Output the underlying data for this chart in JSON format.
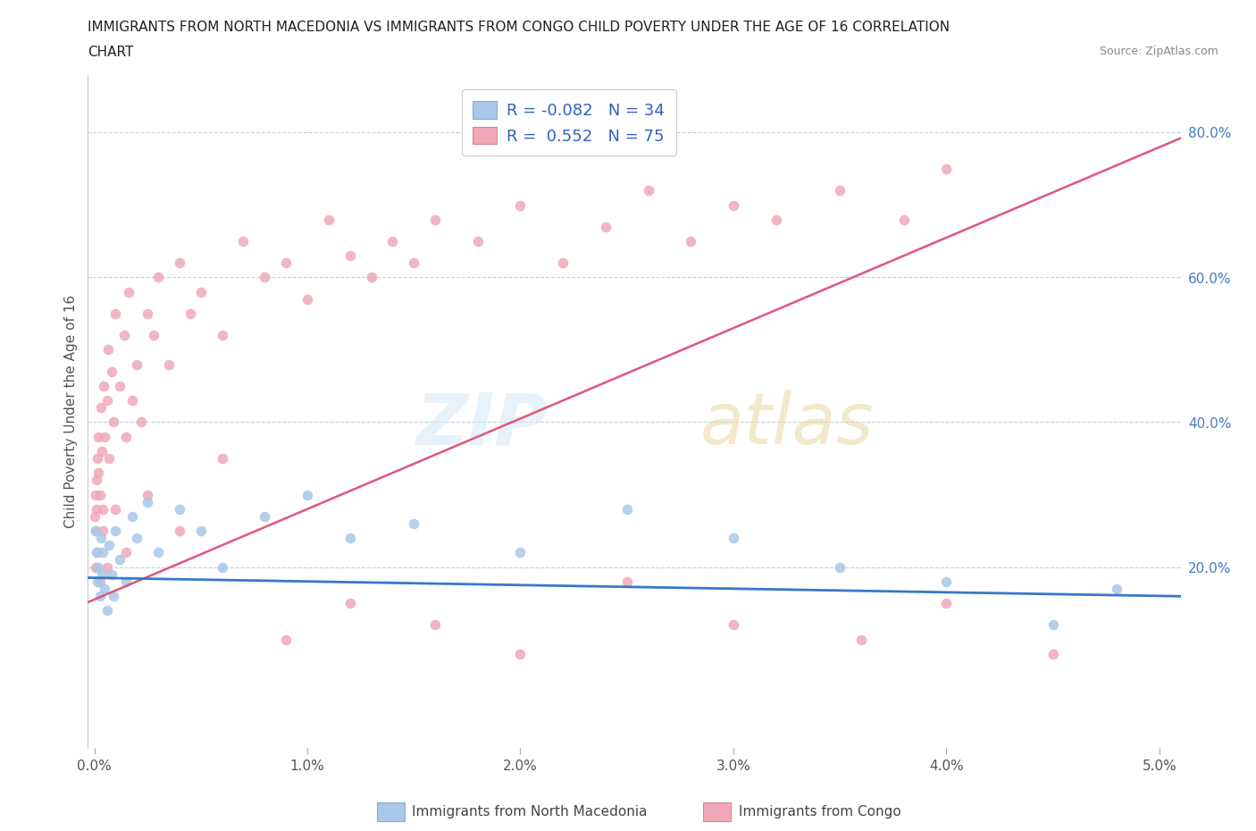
{
  "title_line1": "IMMIGRANTS FROM NORTH MACEDONIA VS IMMIGRANTS FROM CONGO CHILD POVERTY UNDER THE AGE OF 16 CORRELATION",
  "title_line2": "CHART",
  "source_text": "Source: ZipAtlas.com",
  "ylabel": "Child Poverty Under the Age of 16",
  "xlim": [
    -0.0003,
    0.051
  ],
  "ylim": [
    -0.05,
    0.88
  ],
  "xtick_labels": [
    "0.0%",
    "1.0%",
    "2.0%",
    "3.0%",
    "4.0%",
    "5.0%"
  ],
  "xtick_values": [
    0.0,
    0.01,
    0.02,
    0.03,
    0.04,
    0.05
  ],
  "ytick_labels": [
    "20.0%",
    "40.0%",
    "60.0%",
    "80.0%"
  ],
  "ytick_values": [
    0.2,
    0.4,
    0.6,
    0.8
  ],
  "legend_label_blue": "Immigrants from North Macedonia",
  "legend_label_pink": "Immigrants from Congo",
  "R_blue": "-0.082",
  "N_blue": "34",
  "R_pink": "0.552",
  "N_pink": "75",
  "color_blue": "#a8c8e8",
  "color_pink": "#f0a8b8",
  "color_trend_blue": "#3878c8",
  "color_trend_pink": "#e05878",
  "color_dashed_ext": "#e8a0b0",
  "blue_scatter_x": [
    5e-05,
    0.0001,
    0.00015,
    0.0002,
    0.00025,
    0.0003,
    0.00035,
    0.0004,
    0.0005,
    0.0006,
    0.0007,
    0.0008,
    0.0009,
    0.001,
    0.0012,
    0.0015,
    0.0018,
    0.002,
    0.0025,
    0.003,
    0.004,
    0.005,
    0.006,
    0.008,
    0.01,
    0.012,
    0.015,
    0.02,
    0.025,
    0.03,
    0.035,
    0.04,
    0.045,
    0.048
  ],
  "blue_scatter_y": [
    0.25,
    0.22,
    0.18,
    0.2,
    0.16,
    0.24,
    0.19,
    0.22,
    0.17,
    0.14,
    0.23,
    0.19,
    0.16,
    0.25,
    0.21,
    0.18,
    0.27,
    0.24,
    0.29,
    0.22,
    0.28,
    0.25,
    0.2,
    0.27,
    0.3,
    0.24,
    0.26,
    0.22,
    0.28,
    0.24,
    0.2,
    0.18,
    0.12,
    0.17
  ],
  "pink_scatter_x": [
    3e-05,
    5e-05,
    8e-05,
    0.0001,
    0.00012,
    0.00015,
    0.00018,
    0.0002,
    0.00025,
    0.0003,
    0.00035,
    0.0004,
    0.00045,
    0.0005,
    0.0006,
    0.00065,
    0.0007,
    0.0008,
    0.0009,
    0.001,
    0.0012,
    0.0014,
    0.0015,
    0.0016,
    0.0018,
    0.002,
    0.0022,
    0.0025,
    0.0028,
    0.003,
    0.0035,
    0.004,
    0.0045,
    0.005,
    0.006,
    0.007,
    0.008,
    0.009,
    0.01,
    0.011,
    0.012,
    0.013,
    0.014,
    0.015,
    0.016,
    0.018,
    0.02,
    0.022,
    0.024,
    0.026,
    0.028,
    0.03,
    0.032,
    0.035,
    0.038,
    0.04,
    8e-05,
    0.00015,
    0.00025,
    0.0004,
    0.0006,
    0.001,
    0.0015,
    0.0025,
    0.004,
    0.006,
    0.009,
    0.012,
    0.016,
    0.02,
    0.025,
    0.03,
    0.036,
    0.04,
    0.045
  ],
  "pink_scatter_y": [
    0.27,
    0.3,
    0.25,
    0.32,
    0.28,
    0.35,
    0.33,
    0.38,
    0.3,
    0.42,
    0.36,
    0.28,
    0.45,
    0.38,
    0.43,
    0.5,
    0.35,
    0.47,
    0.4,
    0.55,
    0.45,
    0.52,
    0.38,
    0.58,
    0.43,
    0.48,
    0.4,
    0.55,
    0.52,
    0.6,
    0.48,
    0.62,
    0.55,
    0.58,
    0.52,
    0.65,
    0.6,
    0.62,
    0.57,
    0.68,
    0.63,
    0.6,
    0.65,
    0.62,
    0.68,
    0.65,
    0.7,
    0.62,
    0.67,
    0.72,
    0.65,
    0.7,
    0.68,
    0.72,
    0.68,
    0.75,
    0.2,
    0.22,
    0.18,
    0.25,
    0.2,
    0.28,
    0.22,
    0.3,
    0.25,
    0.35,
    0.1,
    0.15,
    0.12,
    0.08,
    0.18,
    0.12,
    0.1,
    0.15,
    0.08
  ],
  "blue_trend_slope": -0.5,
  "blue_trend_intercept": 0.185,
  "pink_trend_slope": 12.5,
  "pink_trend_intercept": 0.155
}
